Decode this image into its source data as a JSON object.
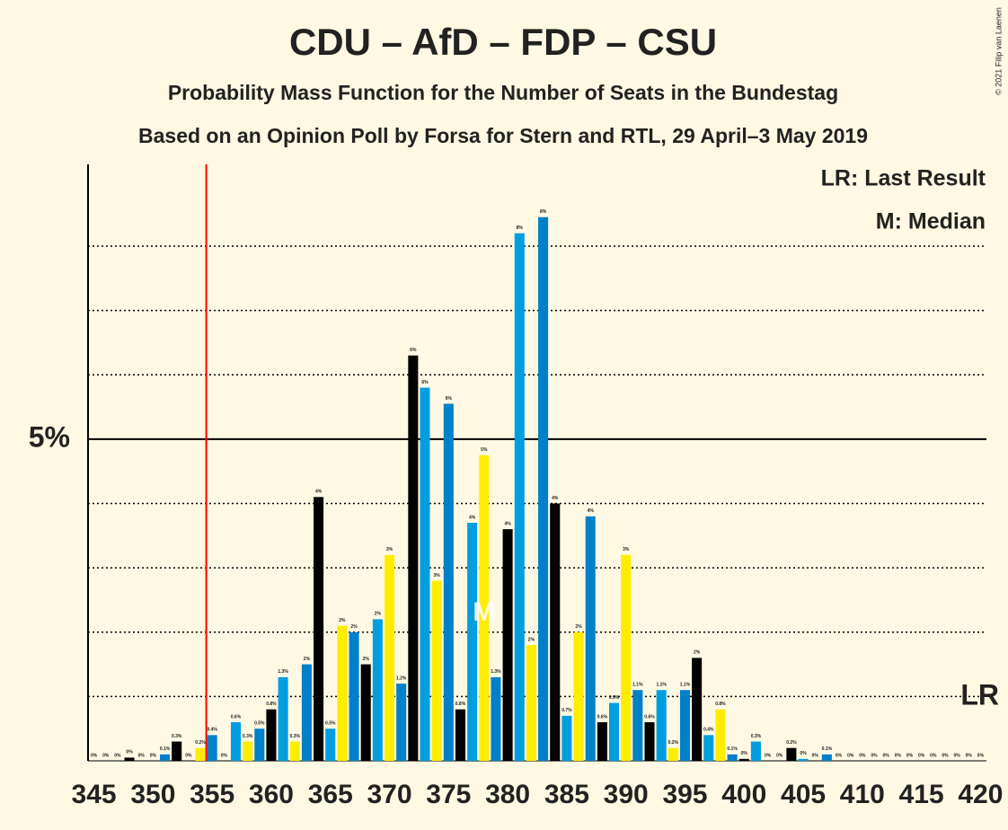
{
  "chart_data": {
    "type": "bar",
    "title": "CDU – AfD – FDP – CSU",
    "subtitle": "Probability Mass Function for the Number of Seats in the Bundestag",
    "subtitle2": "Based on an Opinion Poll by Forsa for Stern and RTL, 29 April–3 May 2019",
    "copyright": "© 2021 Filip van Laenen",
    "legend": [
      "LR: Last Result",
      "M: Median"
    ],
    "lr_marker": "LR",
    "median_marker": "M",
    "last_result": 355,
    "median": 378,
    "x": [
      345,
      346,
      347,
      348,
      349,
      350,
      351,
      352,
      353,
      354,
      355,
      356,
      357,
      358,
      359,
      360,
      361,
      362,
      363,
      364,
      365,
      366,
      367,
      368,
      369,
      370,
      371,
      372,
      373,
      374,
      375,
      376,
      377,
      378,
      379,
      380,
      381,
      382,
      383,
      384,
      385,
      386,
      387,
      388,
      389,
      390,
      391,
      392,
      393,
      394,
      395,
      396,
      397,
      398,
      399,
      400,
      401,
      402,
      403,
      404,
      405,
      406,
      407,
      408,
      409,
      410,
      411,
      412,
      413,
      414,
      415,
      416,
      417,
      418,
      419,
      420
    ],
    "values": [
      0,
      0,
      0,
      0.05,
      0,
      0,
      0.1,
      0.3,
      0,
      0.2,
      0.4,
      0,
      0.6,
      0.3,
      0.5,
      0.8,
      1.3,
      0.3,
      1.5,
      4.1,
      0.5,
      2.1,
      2.0,
      1.5,
      2.2,
      3.2,
      1.2,
      6.3,
      5.8,
      2.8,
      5.55,
      0.8,
      3.7,
      4.75,
      1.3,
      3.6,
      8.2,
      1.8,
      8.45,
      4.0,
      0.7,
      2.0,
      3.8,
      0.6,
      0.9,
      3.2,
      1.1,
      0.6,
      1.1,
      0.2,
      1.1,
      1.6,
      0.4,
      0.8,
      0.1,
      0.03,
      0.3,
      0,
      0,
      0.2,
      0.03,
      0,
      0.1,
      0,
      0,
      0,
      0,
      0,
      0,
      0,
      0,
      0,
      0,
      0,
      0,
      0
    ],
    "value_labels": [
      "0%",
      "0%",
      "0%",
      "0%",
      "0%",
      "0%",
      "0.1%",
      "0.3%",
      "0%",
      "0.2%",
      "0.4%",
      "0%",
      "0.6%",
      "0.3%",
      "0.5%",
      "0.8%",
      "1.3%",
      "0.3%",
      "2%",
      "4%",
      "0.5%",
      "2%",
      "2%",
      "2%",
      "2%",
      "3%",
      "1.2%",
      "6%",
      "6%",
      "3%",
      "6%",
      "0.8%",
      "4%",
      "5%",
      "1.3%",
      "4%",
      "8%",
      "2%",
      "8%",
      "4%",
      "0.7%",
      "2%",
      "4%",
      "0.6%",
      "0.9%",
      "3%",
      "1.1%",
      "0.6%",
      "1.1%",
      "0.2%",
      "1.1%",
      "2%",
      "0.4%",
      "0.8%",
      "0.1%",
      "0%",
      "0.3%",
      "0%",
      "0%",
      "0.2%",
      "0%",
      "0%",
      "0.1%",
      "0%",
      "0%",
      "0%",
      "0%",
      "0%",
      "0%",
      "0%",
      "0%",
      "0%",
      "0%",
      "0%",
      "0%",
      "0%"
    ],
    "colors": [
      "#009ee0",
      "#ffed00",
      "#0080c8",
      "#000000"
    ],
    "xlim": [
      344.5,
      420.5
    ],
    "ylim": [
      0,
      9.27
    ],
    "xticks": [
      345,
      350,
      355,
      360,
      365,
      370,
      375,
      380,
      385,
      390,
      395,
      400,
      405,
      410,
      415,
      420
    ],
    "yticks": [
      {
        "value": 5,
        "label": "5%"
      }
    ],
    "minor_gridlines": [
      1,
      2,
      3,
      4,
      6,
      7,
      8
    ]
  }
}
